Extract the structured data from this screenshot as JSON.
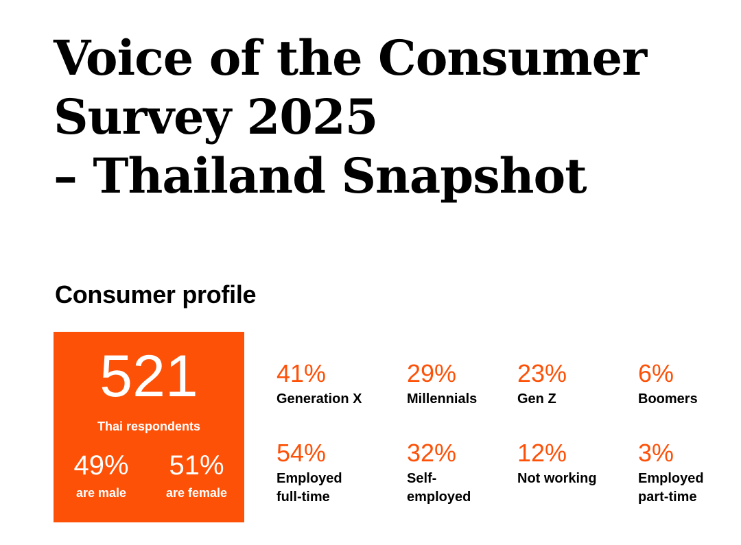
{
  "page": {
    "title_lines": [
      "Voice of the Consumer",
      "Survey 2025",
      "– Thailand Snapshot"
    ],
    "section_title": "Consumer profile"
  },
  "colors": {
    "accent": "#fd5108",
    "text": "#000000",
    "background": "#ffffff"
  },
  "hero": {
    "number": "521",
    "label": "Thai respondents",
    "male": {
      "percent": "49%",
      "label": "are male"
    },
    "female": {
      "percent": "51%",
      "label": "are female"
    }
  },
  "generations": [
    {
      "percent": "41%",
      "label": "Generation X"
    },
    {
      "percent": "29%",
      "label": "Millennials"
    },
    {
      "percent": "23%",
      "label": "Gen Z"
    },
    {
      "percent": "6%",
      "label": "Boomers"
    }
  ],
  "employment": [
    {
      "percent": "54%",
      "label": "Employed\nfull-time"
    },
    {
      "percent": "32%",
      "label": "Self-\nemployed"
    },
    {
      "percent": "12%",
      "label": "Not working"
    },
    {
      "percent": "3%",
      "label": "Employed\npart-time"
    }
  ]
}
